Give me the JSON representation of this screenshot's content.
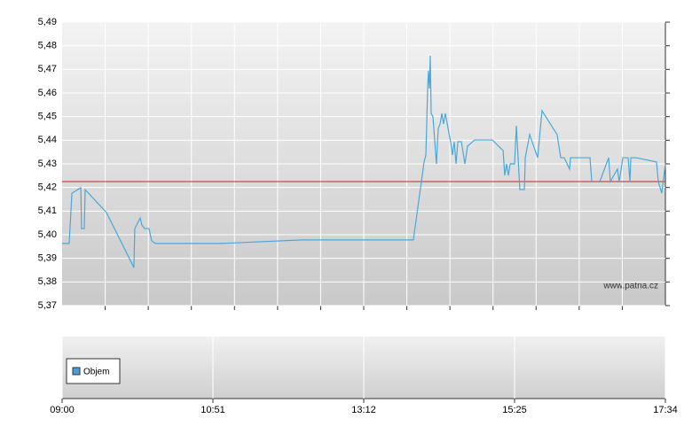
{
  "chart_data": [
    {
      "type": "line",
      "watermark": "www.patria.cz",
      "color": "#4aa8d8",
      "reference_line": 5.4225,
      "reference_color": "#cc2222",
      "ylim": [
        5.37,
        5.49
      ],
      "yticks": [
        {
          "value": 5.37,
          "label": "5,37"
        },
        {
          "value": 5.38,
          "label": "5,38"
        },
        {
          "value": 5.39,
          "label": "5,39"
        },
        {
          "value": 5.4,
          "label": "5,40"
        },
        {
          "value": 5.41,
          "label": "5,41"
        },
        {
          "value": 5.42,
          "label": "5,42"
        },
        {
          "value": 5.43,
          "label": "5,43"
        },
        {
          "value": 5.44,
          "label": "5,44"
        },
        {
          "value": 5.45,
          "label": "5,45"
        },
        {
          "value": 5.46,
          "label": "5,46"
        },
        {
          "value": 5.47,
          "label": "5,47"
        },
        {
          "value": 5.48,
          "label": "5,48"
        },
        {
          "value": 5.49,
          "label": "5,49"
        }
      ],
      "xlim": [
        0,
        4
      ],
      "x": [
        0,
        0.047,
        0.065,
        0.124,
        0.129,
        0.147,
        0.153,
        0.294,
        0.441,
        0.476,
        0.482,
        0.518,
        0.529,
        0.547,
        0.576,
        0.594,
        0.618,
        1.059,
        1.588,
        2.329,
        2.4,
        2.412,
        2.424,
        2.429,
        2.435,
        2.441,
        2.447,
        2.459,
        2.482,
        2.494,
        2.506,
        2.518,
        2.529,
        2.541,
        2.559,
        2.576,
        2.588,
        2.6,
        2.612,
        2.624,
        2.647,
        2.671,
        2.688,
        2.735,
        2.853,
        2.924,
        2.935,
        2.947,
        2.959,
        2.971,
        3,
        3.012,
        3.035,
        3.065,
        3.071,
        3.1,
        3.153,
        3.182,
        3.282,
        3.306,
        3.329,
        3.365,
        3.371,
        3.5,
        3.512,
        3.54,
        3.565,
        3.624,
        3.635,
        3.682,
        3.694,
        3.718,
        3.753,
        3.765,
        3.771,
        3.806,
        3.941,
        3.953,
        3.976,
        4
      ],
      "values": [
        5.3963,
        5.3963,
        5.4176,
        5.4199,
        5.4026,
        5.4026,
        5.4191,
        5.4094,
        5.3906,
        5.3861,
        5.4026,
        5.4071,
        5.4041,
        5.4026,
        5.4026,
        5.3974,
        5.3963,
        5.3963,
        5.3978,
        5.3978,
        5.4308,
        5.4338,
        5.4626,
        5.4694,
        5.4619,
        5.4758,
        5.4514,
        5.4499,
        5.43,
        5.445,
        5.4469,
        5.4514,
        5.4469,
        5.4514,
        5.445,
        5.4394,
        5.4338,
        5.4394,
        5.43,
        5.4394,
        5.4394,
        5.43,
        5.4375,
        5.4401,
        5.4401,
        5.4356,
        5.4251,
        5.43,
        5.4251,
        5.43,
        5.43,
        5.4461,
        5.4191,
        5.4191,
        5.4326,
        5.4424,
        5.4326,
        5.4525,
        5.4424,
        5.4326,
        5.4326,
        5.4278,
        5.4326,
        5.4326,
        5.4225,
        null,
        5.4225,
        5.4326,
        5.4225,
        5.4278,
        5.4225,
        5.4326,
        5.4326,
        5.4225,
        5.4326,
        5.4326,
        5.4308,
        5.4225,
        5.4176,
        5.43
      ]
    },
    {
      "type": "bar",
      "xlim": [
        0,
        4
      ],
      "xticks": [
        {
          "value": 0,
          "label": "09:00"
        },
        {
          "value": 1,
          "label": "10:51"
        },
        {
          "value": 2,
          "label": "13:12"
        },
        {
          "value": 3,
          "label": "15:25"
        },
        {
          "value": 4,
          "label": "17:34"
        }
      ],
      "series": [
        {
          "name": "Objem",
          "color": "#4a9fd4",
          "values": []
        }
      ]
    }
  ]
}
